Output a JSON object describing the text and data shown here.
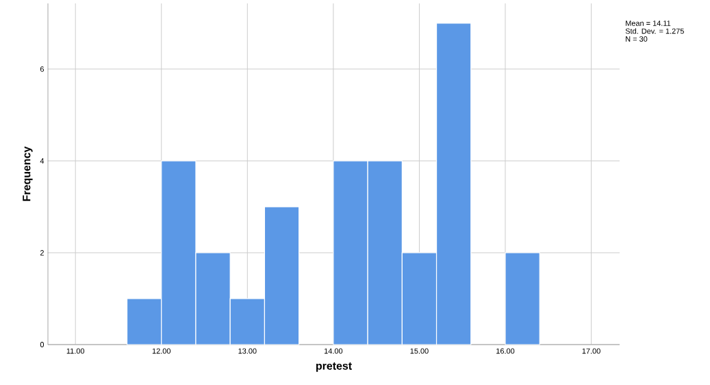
{
  "chart_data": {
    "type": "histogram",
    "xlabel": "pretest",
    "ylabel": "Frequency",
    "bins": [
      11.6,
      12.0,
      12.4,
      12.8,
      13.2,
      13.6,
      14.0,
      14.4,
      14.8,
      15.2,
      15.6,
      16.0,
      16.4
    ],
    "values": [
      1,
      4,
      2,
      1,
      3,
      0,
      4,
      4,
      2,
      7,
      0,
      2
    ],
    "color": "#5b98e6",
    "xlim": [
      10.68,
      17.33
    ],
    "ylim": [
      0,
      7.43
    ],
    "xticks": [
      {
        "value": 11,
        "label": "11.00"
      },
      {
        "value": 12,
        "label": "12.00"
      },
      {
        "value": 13,
        "label": "13.00"
      },
      {
        "value": 14,
        "label": "14.00"
      },
      {
        "value": 15,
        "label": "15.00"
      },
      {
        "value": 16,
        "label": "16.00"
      },
      {
        "value": 17,
        "label": "17.00"
      }
    ],
    "yticks": [
      0,
      2,
      4,
      6
    ],
    "grid": true,
    "annotations": [
      "Mean = 14.11",
      "Std. Dev. = 1.275",
      "N = 30"
    ]
  }
}
